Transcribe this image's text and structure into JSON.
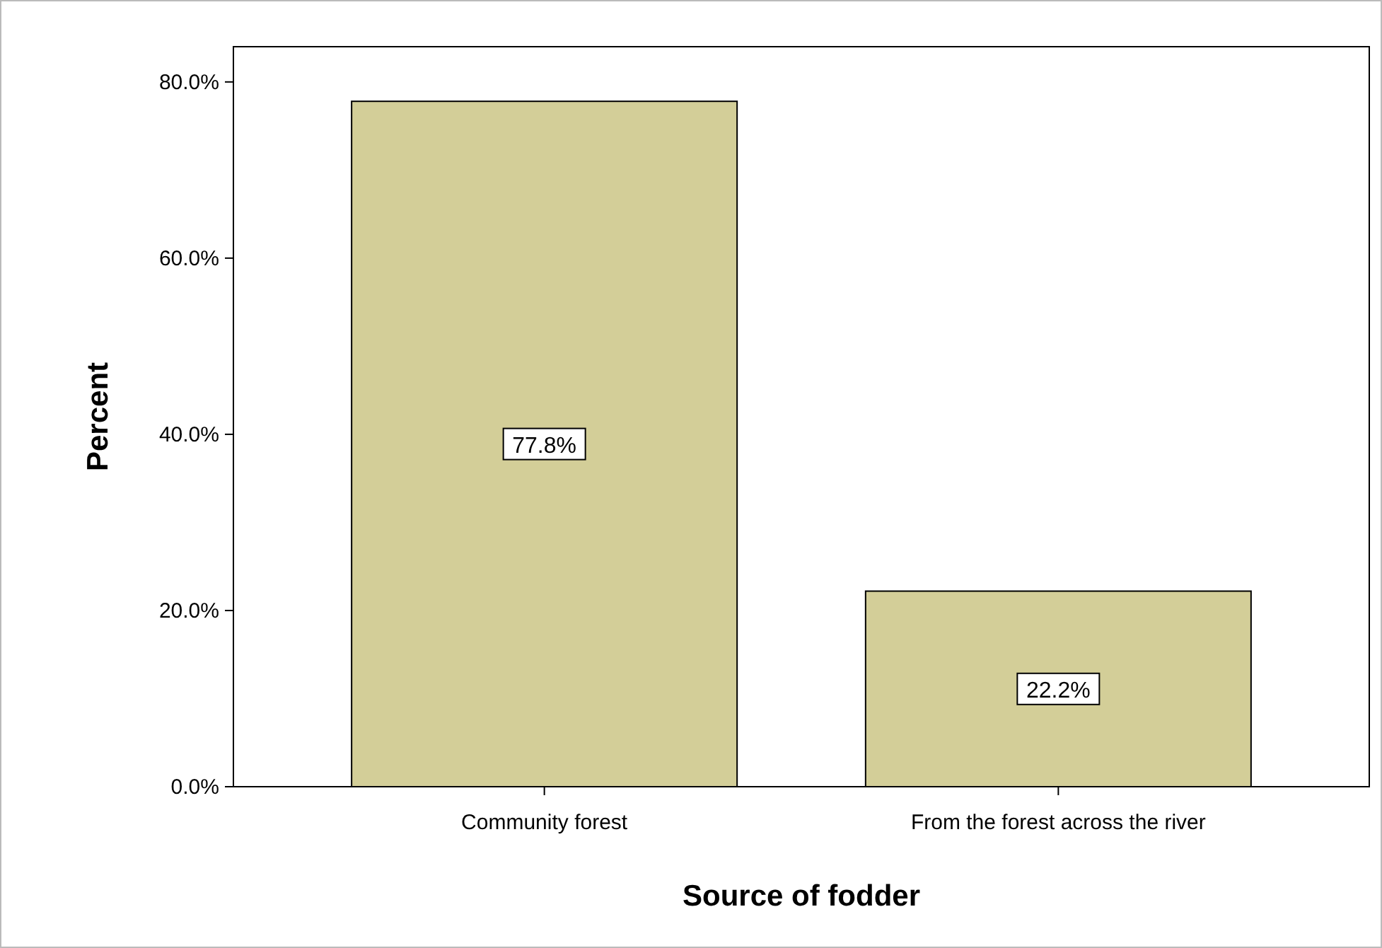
{
  "chart_data": {
    "type": "bar",
    "xlabel": "Source of fodder",
    "ylabel": "Percent",
    "categories": [
      "Community forest",
      "From the forest across the river"
    ],
    "values": [
      77.8,
      22.2
    ],
    "value_labels": [
      "77.8%",
      "22.2%"
    ],
    "color": "#d3ce98",
    "ylim": [
      0,
      84
    ],
    "yticks": [
      {
        "value": 0,
        "label": "0.0%"
      },
      {
        "value": 20,
        "label": "20.0%"
      },
      {
        "value": 40,
        "label": "40.0%"
      },
      {
        "value": 60,
        "label": "60.0%"
      },
      {
        "value": 80,
        "label": "80.0%"
      }
    ],
    "grid": false
  }
}
